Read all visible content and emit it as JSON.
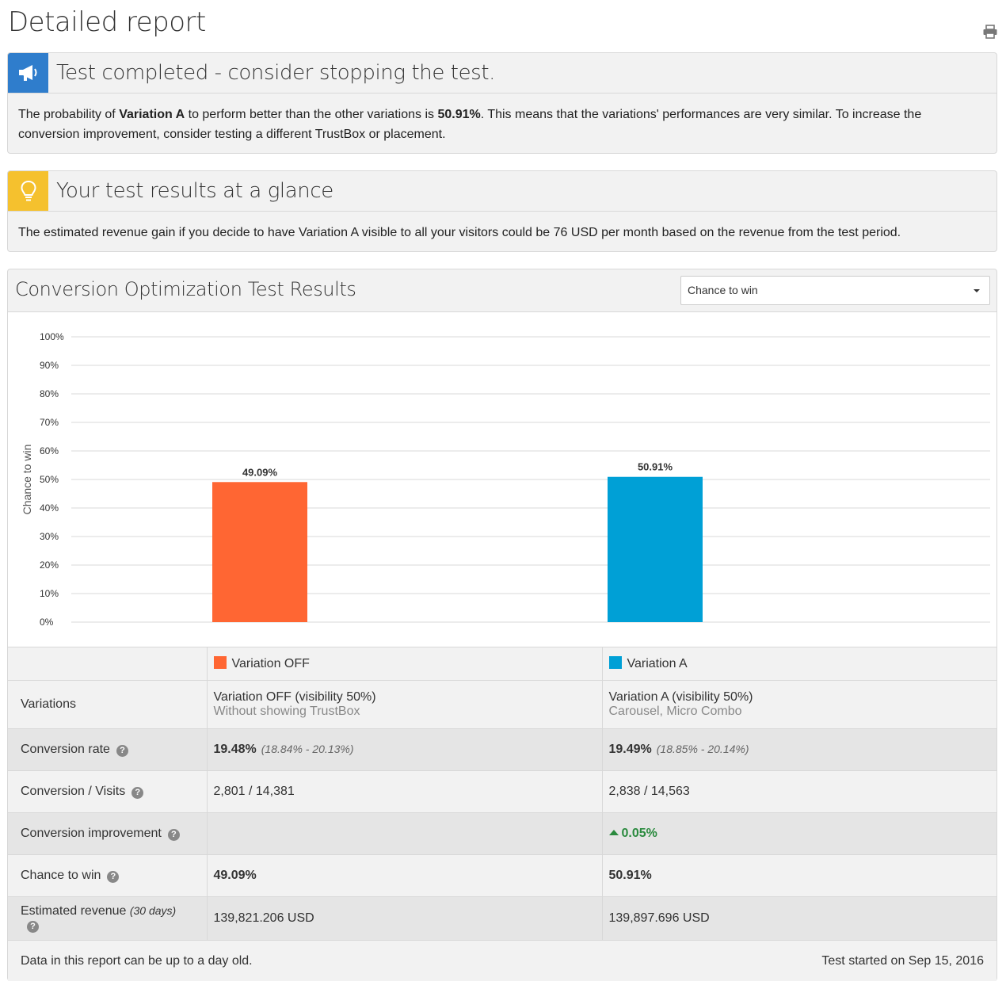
{
  "page": {
    "title": "Detailed report"
  },
  "alert": {
    "title": "Test completed - consider stopping the test.",
    "text_1": "The probability of ",
    "variation": "Variation A",
    "text_2": " to perform better than the other variations is ",
    "probability": "50.91%",
    "text_3": ". This means that the variations' performances are very similar. To increase the conversion improvement, consider testing a different TrustBox or placement.",
    "icon_color": "#2f7dcc"
  },
  "glance": {
    "title": "Your test results at a glance",
    "text": "The estimated revenue gain if you decide to have Variation A visible to all your visitors could be 76 USD per month based on the revenue from the test period.",
    "icon_color": "#f5c12e"
  },
  "results": {
    "title": "Conversion Optimization Test Results",
    "metric_select": "Chance to win"
  },
  "chart_data": {
    "type": "bar",
    "categories": [
      "Variation OFF",
      "Variation A"
    ],
    "values": [
      49.09,
      50.91
    ],
    "value_labels": [
      "49.09%",
      "50.91%"
    ],
    "colors": [
      "#ff6633",
      "#00a0d6"
    ],
    "ylabel": "Chance to win",
    "ylim": [
      0,
      100
    ],
    "yticks": [
      "0%",
      "10%",
      "20%",
      "30%",
      "40%",
      "50%",
      "60%",
      "70%",
      "80%",
      "90%",
      "100%"
    ],
    "grid": true
  },
  "legend": [
    {
      "label": "Variation OFF",
      "color": "#ff6633"
    },
    {
      "label": "Variation A",
      "color": "#00a0d6"
    }
  ],
  "table": {
    "rows": {
      "variations": {
        "label": "Variations",
        "off_name": "Variation OFF  (visibility 50%)",
        "off_sub": "Without showing TrustBox",
        "a_name": "Variation A  (visibility 50%)",
        "a_sub": "Carousel, Micro Combo"
      },
      "conversion_rate": {
        "label": "Conversion rate",
        "off": "19.48%",
        "off_range": "(18.84% - 20.13%)",
        "a": "19.49%",
        "a_range": "(18.85% - 20.14%)"
      },
      "conversion_visits": {
        "label": "Conversion / Visits",
        "off": "2,801 / 14,381",
        "a": "2,838 / 14,563"
      },
      "improvement": {
        "label": "Conversion improvement",
        "off": "",
        "a": "0.05%"
      },
      "chance": {
        "label": "Chance to win",
        "off": "49.09%",
        "a": "50.91%"
      },
      "revenue": {
        "label": "Estimated revenue",
        "label_note": "(30 days)",
        "off": "139,821.206 USD",
        "a": "139,897.696 USD"
      }
    }
  },
  "footer": {
    "note": "Data in this report can be up to a day old.",
    "started": "Test started on Sep 15, 2016"
  }
}
